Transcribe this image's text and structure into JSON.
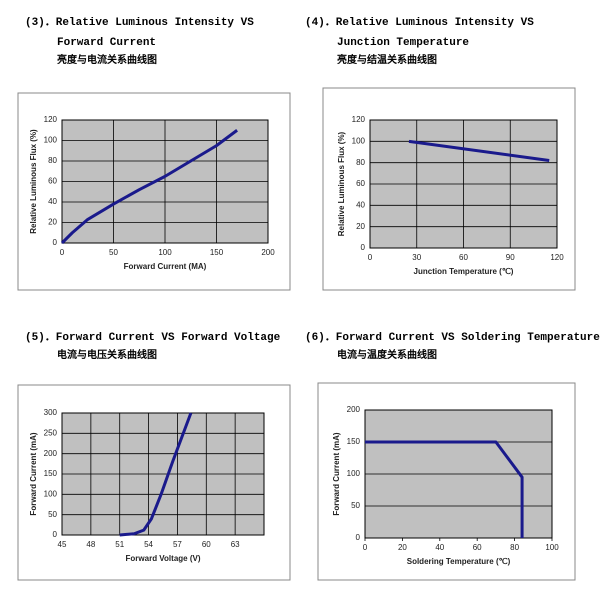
{
  "chart_data": [
    {
      "type": "line",
      "title": [
        "(3)．Relative Luminous Intensity VS",
        "Forward Current"
      ],
      "subtitle": "亮度与电流关系曲线图",
      "x_label": "Forward Current (MA)",
      "y_label": "Relative Luminous Flux (%)",
      "x": [
        0,
        10,
        25,
        50,
        75,
        100,
        125,
        150,
        170
      ],
      "values": [
        0,
        10,
        23,
        38,
        52,
        65,
        80,
        95,
        110
      ],
      "color": "#1a1a8c",
      "xlim": [
        0,
        200
      ],
      "xticks": [
        0,
        50,
        100,
        150,
        200
      ],
      "ylim": [
        0,
        120
      ],
      "yticks": [
        0,
        20,
        40,
        60,
        80,
        100,
        120
      ],
      "grid": "both"
    },
    {
      "type": "line",
      "title": [
        "(4)．Relative Luminous Intensity VS",
        "Junction Temperature"
      ],
      "subtitle": "亮度与结温关系曲线图",
      "x_label": "Junction Temperature (℃)",
      "y_label": "Relative Luminous Flux (%)",
      "x": [
        25,
        115
      ],
      "values": [
        100,
        82
      ],
      "color": "#1a1a8c",
      "xlim": [
        0,
        120
      ],
      "xticks": [
        0,
        30,
        60,
        90,
        120
      ],
      "ylim": [
        0,
        120
      ],
      "yticks": [
        0,
        20,
        40,
        60,
        80,
        100,
        120
      ],
      "grid": "both"
    },
    {
      "type": "line",
      "title": [
        "(5)．Forward Current VS Forward Voltage"
      ],
      "subtitle": "电流与电压关系曲线图",
      "x_label": "Forward Voltage (V)",
      "y_label": "Forward Current (mA)",
      "x": [
        51,
        52.5,
        53.5,
        54.3,
        55.3,
        56.5,
        58.4
      ],
      "values": [
        0,
        3,
        12,
        40,
        100,
        180,
        300
      ],
      "color": "#1a1a8c",
      "xlim": [
        45,
        66
      ],
      "xticks": [
        45,
        48,
        51,
        54,
        57,
        60,
        63
      ],
      "ylim": [
        0,
        300
      ],
      "yticks": [
        0,
        50,
        100,
        150,
        200,
        250,
        300
      ],
      "grid": "both"
    },
    {
      "type": "line",
      "title": [
        "(6)．Forward Current VS Soldering Temperature"
      ],
      "subtitle": "电流与温度关系曲线图",
      "x_label": "Soldering Temperature (℃)",
      "y_label": "Forward Current (mA)",
      "x": [
        0,
        70,
        84,
        84
      ],
      "values": [
        150,
        150,
        95,
        0
      ],
      "color": "#1a1a8c",
      "xlim": [
        0,
        100
      ],
      "xticks": [
        0,
        20,
        40,
        60,
        80,
        100
      ],
      "ylim": [
        0,
        200
      ],
      "yticks": [
        0,
        50,
        100,
        150,
        200
      ],
      "grid": "y"
    }
  ]
}
